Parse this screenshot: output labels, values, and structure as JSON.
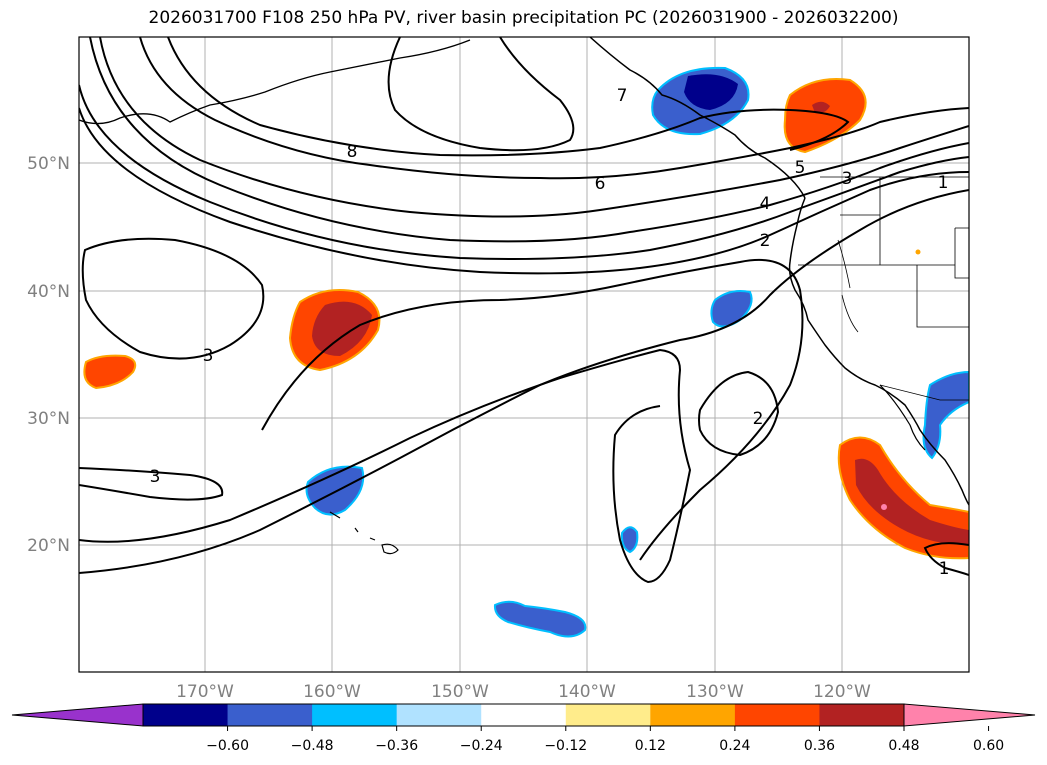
{
  "title": "2026031700 F108 250 hPa PV, river basin precipitation PC (2026031900 - 2026032200)",
  "lat_labels": [
    "50°N",
    "40°N",
    "30°N",
    "20°N"
  ],
  "lon_labels": [
    "170°W",
    "160°W",
    "150°W",
    "140°W",
    "130°W",
    "120°W"
  ],
  "contour_labels": [
    "8",
    "7",
    "6",
    "5",
    "4",
    "3",
    "2",
    "1",
    "3",
    "3",
    "2",
    "1"
  ],
  "colorbar": {
    "ticks": [
      "−0.60",
      "−0.48",
      "−0.36",
      "−0.24",
      "−0.12",
      "0.12",
      "0.24",
      "0.36",
      "0.48",
      "0.60"
    ],
    "colors": [
      "#9932cc",
      "#00008b",
      "#3a5fcd",
      "#00bfff",
      "#b0e2ff",
      "#ffffff",
      "#ffec8b",
      "#ffa500",
      "#ff4500",
      "#b22222",
      "#ff82ab"
    ]
  }
}
